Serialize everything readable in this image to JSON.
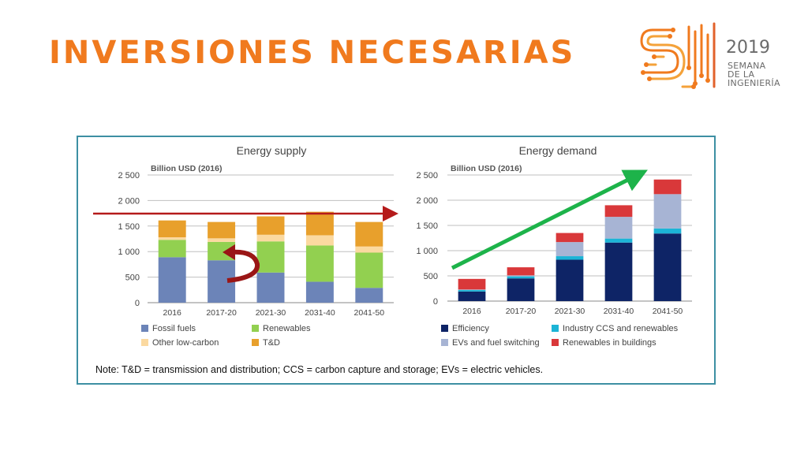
{
  "title": "INVERSIONES NECESARIAS",
  "logo": {
    "year": "2019",
    "line1": "SEMANA",
    "line2": "DE LA",
    "line3": "INGENIERÍA",
    "colors": [
      "#f07a1e",
      "#f4a23a",
      "#e2622b"
    ]
  },
  "note": "Note: T&D = transmission and distribution; CCS = carbon capture and storage; EVs = electric vehicles.",
  "colors": {
    "accent": "#f07a1e",
    "frame": "#3d8fa3",
    "red_line": "#b51b1b",
    "green_arrow": "#1db34a"
  },
  "chart_data": [
    {
      "type": "bar",
      "stacked": true,
      "title": "Energy supply",
      "unit_label": "Billion USD (2016)",
      "categories": [
        "2016",
        "2017-20",
        "2021-30",
        "2031-40",
        "2041-50"
      ],
      "ylim": [
        0,
        2500
      ],
      "yticks": [
        "0",
        "500",
        "1 000",
        "1 500",
        "2 000",
        "2 500"
      ],
      "grid": true,
      "legend_position": "bottom",
      "series": [
        {
          "name": "Fossil fuels",
          "color": "#6c84b8",
          "values": [
            890,
            830,
            590,
            410,
            290
          ]
        },
        {
          "name": "Renewables",
          "color": "#92d050",
          "values": [
            340,
            360,
            610,
            710,
            690
          ]
        },
        {
          "name": "Other low-carbon",
          "color": "#fbd9a0",
          "values": [
            50,
            70,
            130,
            200,
            120
          ]
        },
        {
          "name": "T&D",
          "color": "#e8a02c",
          "values": [
            330,
            320,
            360,
            460,
            480
          ]
        }
      ]
    },
    {
      "type": "bar",
      "stacked": true,
      "title": "Energy demand",
      "unit_label": "Billion USD (2016)",
      "categories": [
        "2016",
        "2017-20",
        "2021-30",
        "2031-40",
        "2041-50"
      ],
      "ylim": [
        0,
        2500
      ],
      "yticks": [
        "0",
        "500",
        "1 000",
        "1 500",
        "2 000",
        "2 500"
      ],
      "grid": true,
      "legend_position": "bottom",
      "series": [
        {
          "name": "Efficiency",
          "color": "#0e2466",
          "values": [
            190,
            450,
            820,
            1160,
            1340
          ]
        },
        {
          "name": "Industry CCS and renewables",
          "color": "#1cb4d6",
          "values": [
            30,
            40,
            70,
            80,
            100
          ]
        },
        {
          "name": "EVs and fuel switching",
          "color": "#a7b4d4",
          "values": [
            10,
            20,
            280,
            430,
            680
          ]
        },
        {
          "name": "Renewables in buildings",
          "color": "#d9383a",
          "values": [
            210,
            160,
            180,
            230,
            290
          ]
        }
      ]
    }
  ]
}
